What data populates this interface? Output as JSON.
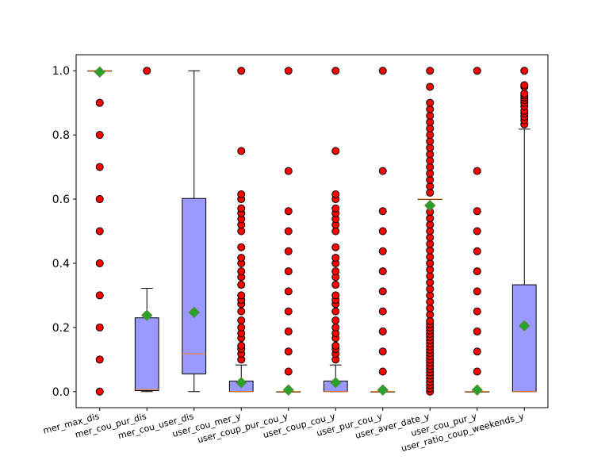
{
  "chart_data": {
    "type": "box",
    "title": "",
    "xlabel": "",
    "ylabel": "",
    "ylim": [
      -0.05,
      1.05
    ],
    "yticks": [
      0.0,
      0.2,
      0.4,
      0.6,
      0.8,
      1.0
    ],
    "ytick_labels": [
      "0.0",
      "0.2",
      "0.4",
      "0.6",
      "0.8",
      "1.0"
    ],
    "grid": false,
    "colors": {
      "box_fill": "#9999ff",
      "median_line": "#ff7f0e",
      "outlier_fill": "#ff0000",
      "mean_marker": "#2ca02c",
      "mean_marker_edge": "#5a8a3a"
    },
    "categories": [
      "mer_max_dis",
      "mer_cou_pur_dis",
      "mer_cou_user_dis",
      "user_cou_mer_y",
      "user_coup_pur_cou_y",
      "user_coup_cou_y",
      "user_pur_cou_y",
      "user_aver_date_y",
      "user_cou_pur_y",
      "user_ratio_coup_weekends_y"
    ],
    "boxes": [
      {
        "q1": 1.0,
        "median": 1.0,
        "q3": 1.0,
        "whisker_low": 1.0,
        "whisker_high": 1.0,
        "mean": 0.996,
        "outliers": [
          0.0,
          0.1,
          0.2,
          0.3,
          0.4,
          0.5,
          0.6,
          0.7,
          0.8,
          0.9
        ]
      },
      {
        "q1": 0.003,
        "median": 0.007,
        "q3": 0.23,
        "whisker_low": 0.0,
        "whisker_high": 0.322,
        "mean": 0.238,
        "outliers": [
          1.0
        ]
      },
      {
        "q1": 0.055,
        "median": 0.118,
        "q3": 0.602,
        "whisker_low": 0.0,
        "whisker_high": 1.0,
        "mean": 0.247,
        "outliers": []
      },
      {
        "q1": 0.0,
        "median": 0.0,
        "q3": 0.033,
        "whisker_low": 0.0,
        "whisker_high": 0.083,
        "mean": 0.028,
        "outliers": [
          0.1,
          0.118,
          0.133,
          0.143,
          0.167,
          0.182,
          0.2,
          0.222,
          0.25,
          0.273,
          0.286,
          0.3,
          0.333,
          0.357,
          0.375,
          0.4,
          0.417,
          0.45,
          0.5,
          0.52,
          0.538,
          0.556,
          0.571,
          0.6,
          0.615,
          0.75,
          1.0
        ]
      },
      {
        "q1": 0.0,
        "median": 0.0,
        "q3": 0.0,
        "whisker_low": 0.0,
        "whisker_high": 0.0,
        "mean": 0.005,
        "outliers": [
          0.0625,
          0.125,
          0.1875,
          0.25,
          0.3125,
          0.375,
          0.4375,
          0.5,
          0.5625,
          0.6875,
          1.0
        ]
      },
      {
        "q1": 0.0,
        "median": 0.0,
        "q3": 0.033,
        "whisker_low": 0.0,
        "whisker_high": 0.083,
        "mean": 0.028,
        "outliers": [
          0.1,
          0.118,
          0.133,
          0.143,
          0.167,
          0.182,
          0.2,
          0.222,
          0.25,
          0.273,
          0.286,
          0.3,
          0.333,
          0.357,
          0.375,
          0.4,
          0.417,
          0.45,
          0.5,
          0.52,
          0.538,
          0.556,
          0.571,
          0.6,
          0.615,
          0.75,
          1.0
        ]
      },
      {
        "q1": 0.0,
        "median": 0.0,
        "q3": 0.0,
        "whisker_low": 0.0,
        "whisker_high": 0.0,
        "mean": 0.005,
        "outliers": [
          0.0625,
          0.125,
          0.1875,
          0.25,
          0.3125,
          0.375,
          0.4375,
          0.5,
          0.5625,
          0.6875,
          1.0
        ]
      },
      {
        "q1": 0.6,
        "median": 0.6,
        "q3": 0.6,
        "whisker_low": 0.6,
        "whisker_high": 0.6,
        "mean": 0.58,
        "outliers": [
          0.0,
          0.01,
          0.02,
          0.03,
          0.04,
          0.05,
          0.06,
          0.07,
          0.08,
          0.09,
          0.1,
          0.11,
          0.12,
          0.13,
          0.14,
          0.15,
          0.16,
          0.17,
          0.18,
          0.19,
          0.2,
          0.21,
          0.22,
          0.24,
          0.26,
          0.28,
          0.3,
          0.32,
          0.34,
          0.36,
          0.38,
          0.4,
          0.42,
          0.44,
          0.46,
          0.48,
          0.5,
          0.52,
          0.54,
          0.56,
          0.58,
          0.62,
          0.64,
          0.66,
          0.68,
          0.7,
          0.72,
          0.74,
          0.76,
          0.78,
          0.8,
          0.82,
          0.84,
          0.86,
          0.88,
          0.9,
          0.95,
          1.0
        ]
      },
      {
        "q1": 0.0,
        "median": 0.0,
        "q3": 0.0,
        "whisker_low": 0.0,
        "whisker_high": 0.0,
        "mean": 0.005,
        "outliers": [
          0.0625,
          0.125,
          0.1875,
          0.25,
          0.3125,
          0.375,
          0.4375,
          0.5,
          0.5625,
          0.6875,
          1.0
        ]
      },
      {
        "q1": 0.0,
        "median": 0.0,
        "q3": 0.333,
        "whisker_low": 0.0,
        "whisker_high": 0.818,
        "mean": 0.205,
        "outliers": [
          0.833,
          0.846,
          0.857,
          0.867,
          0.875,
          0.889,
          0.9,
          0.909,
          0.917,
          0.923,
          0.929,
          0.95,
          0.955,
          1.0
        ]
      }
    ]
  }
}
